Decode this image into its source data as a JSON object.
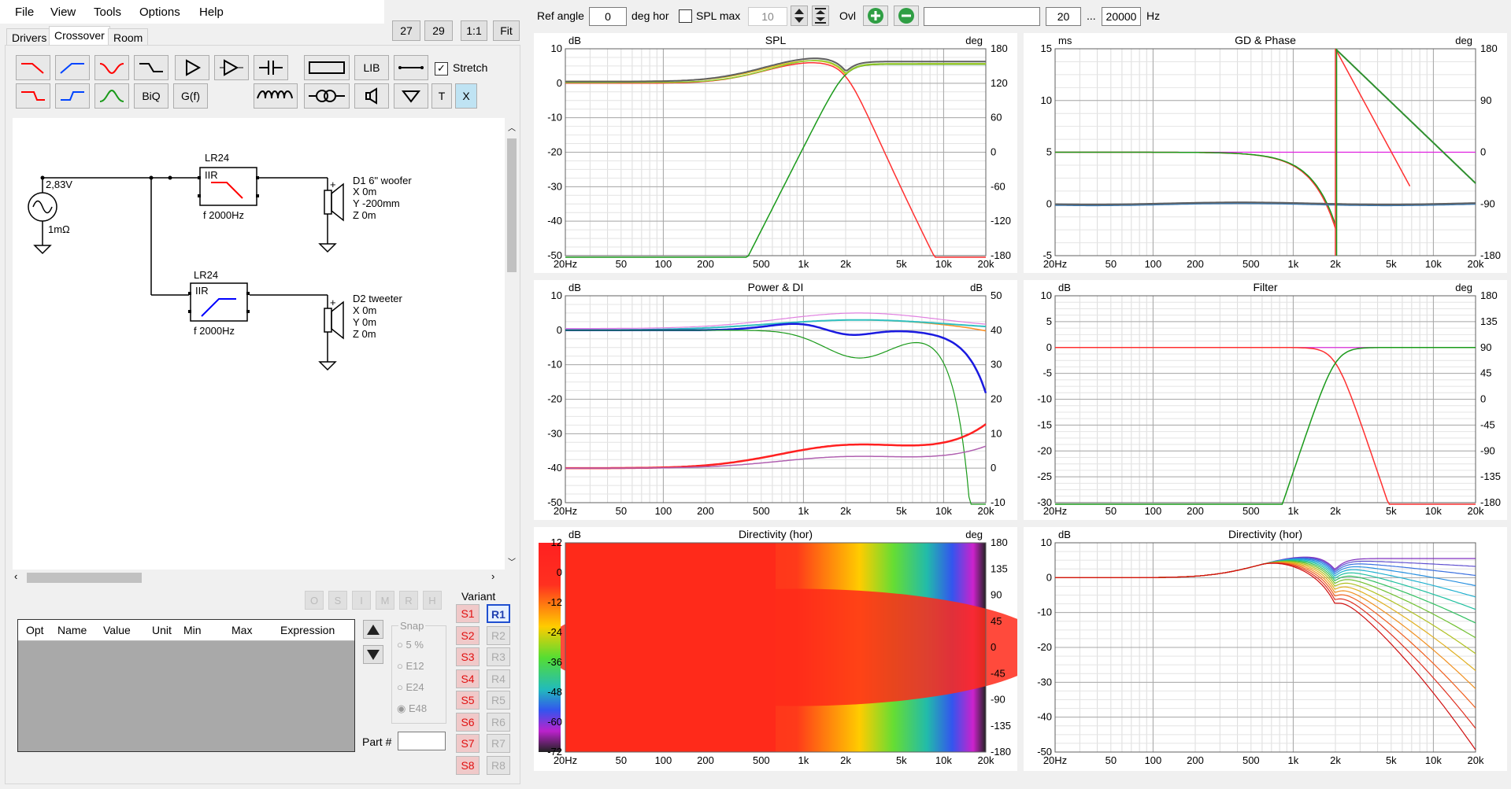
{
  "menu": [
    "File",
    "View",
    "Tools",
    "Options",
    "Help"
  ],
  "tabs": [
    "Drivers",
    "Crossover",
    "Room"
  ],
  "zoom_buttons": [
    "27",
    "29",
    "1:1",
    "Fit"
  ],
  "toolbar": {
    "biq": "BiQ",
    "gf": "G(f)",
    "lib": "LIB",
    "stretch_label": "Stretch",
    "stretch_checked": true,
    "t": "T",
    "x": "X"
  },
  "top_controls": {
    "ref_angle_label": "Ref angle",
    "ref_angle_value": "0",
    "deg_hor": "deg hor",
    "spl_max_label": "SPL max",
    "spl_max_value": "10",
    "ovl_label": "Ovl",
    "freq_min": "20",
    "dots": "...",
    "freq_max": "20000",
    "hz": "Hz"
  },
  "schematic": {
    "source_voltage": "2,83V",
    "source_impedance": "1mΩ",
    "filter1_label": "LR24",
    "filter1_type": "IIR",
    "filter1_freq": "f  2000Hz",
    "filter2_label": "LR24",
    "filter2_type": "IIR",
    "filter2_freq": "f  2000Hz",
    "d1": [
      "D1 6\" woofer",
      "X 0m",
      "Y -200mm",
      "Z 0m"
    ],
    "d2": [
      "D2 tweeter",
      "X 0m",
      "Y 0m",
      "Z 0m"
    ]
  },
  "small_buttons": [
    "O",
    "S",
    "I",
    "M",
    "R",
    "H"
  ],
  "param_table": {
    "columns": [
      "Opt",
      "Name",
      "Value",
      "Unit",
      "Min",
      "Max",
      "Expression"
    ]
  },
  "snap": {
    "label": "Snap",
    "options": [
      "5 %",
      "E12",
      "E24",
      "E48"
    ],
    "selected": "E48"
  },
  "part_label": "Part #",
  "variant": {
    "label": "Variant",
    "s": [
      "S1",
      "S2",
      "S3",
      "S4",
      "S5",
      "S6",
      "S7",
      "S8"
    ],
    "r": [
      "R1",
      "R2",
      "R3",
      "R4",
      "R5",
      "R6",
      "R7",
      "R8"
    ],
    "active_r": "R1"
  },
  "freq_ticks": [
    "20Hz",
    "50",
    "100",
    "200",
    "500",
    "1k",
    "2k",
    "5k",
    "10k",
    "20k"
  ],
  "charts": {
    "spl": {
      "title": "SPL",
      "left_unit": "dB",
      "right_unit": "deg",
      "left_ticks": [
        "10",
        "0",
        "-10",
        "-20",
        "-30",
        "-40",
        "-50"
      ],
      "right_ticks": [
        "180",
        "120",
        "60",
        "0",
        "-60",
        "-120",
        "-180"
      ]
    },
    "gd": {
      "title": "GD & Phase",
      "left_unit": "ms",
      "right_unit": "deg",
      "left_ticks": [
        "15",
        "10",
        "5",
        "0",
        "-5"
      ],
      "right_ticks": [
        "180",
        "90",
        "0",
        "-90",
        "-180"
      ]
    },
    "power": {
      "title": "Power & DI",
      "left_unit": "dB",
      "right_unit": "dB",
      "left_ticks": [
        "10",
        "0",
        "-10",
        "-20",
        "-30",
        "-40",
        "-50"
      ],
      "right_ticks": [
        "50",
        "40",
        "30",
        "20",
        "10",
        "0",
        "-10"
      ]
    },
    "filter": {
      "title": "Filter",
      "left_unit": "dB",
      "right_unit": "deg",
      "left_ticks": [
        "10",
        "5",
        "0",
        "-5",
        "-10",
        "-15",
        "-20",
        "-25",
        "-30"
      ],
      "right_ticks": [
        "180",
        "135",
        "90",
        "45",
        "0",
        "-45",
        "-90",
        "-135",
        "-180"
      ]
    },
    "dirmap": {
      "title": "Directivity (hor)",
      "left_unit": "dB",
      "right_unit": "deg",
      "left_ticks": [
        "12",
        "0",
        "-12",
        "-24",
        "-36",
        "-48",
        "-60",
        "-72"
      ],
      "right_ticks": [
        "180",
        "135",
        "90",
        "45",
        "0",
        "-45",
        "-90",
        "-135",
        "-180"
      ]
    },
    "dir": {
      "title": "Directivity (hor)",
      "left_unit": "dB",
      "right_unit": "",
      "left_ticks": [
        "10",
        "0",
        "-10",
        "-20",
        "-30",
        "-40",
        "-50"
      ],
      "right_ticks": []
    }
  },
  "colors": {
    "red": "#ff0000",
    "blue": "#0000ff",
    "green": "#1a9a1a",
    "magenta": "#e020e0",
    "accent": "#2f9e44"
  }
}
